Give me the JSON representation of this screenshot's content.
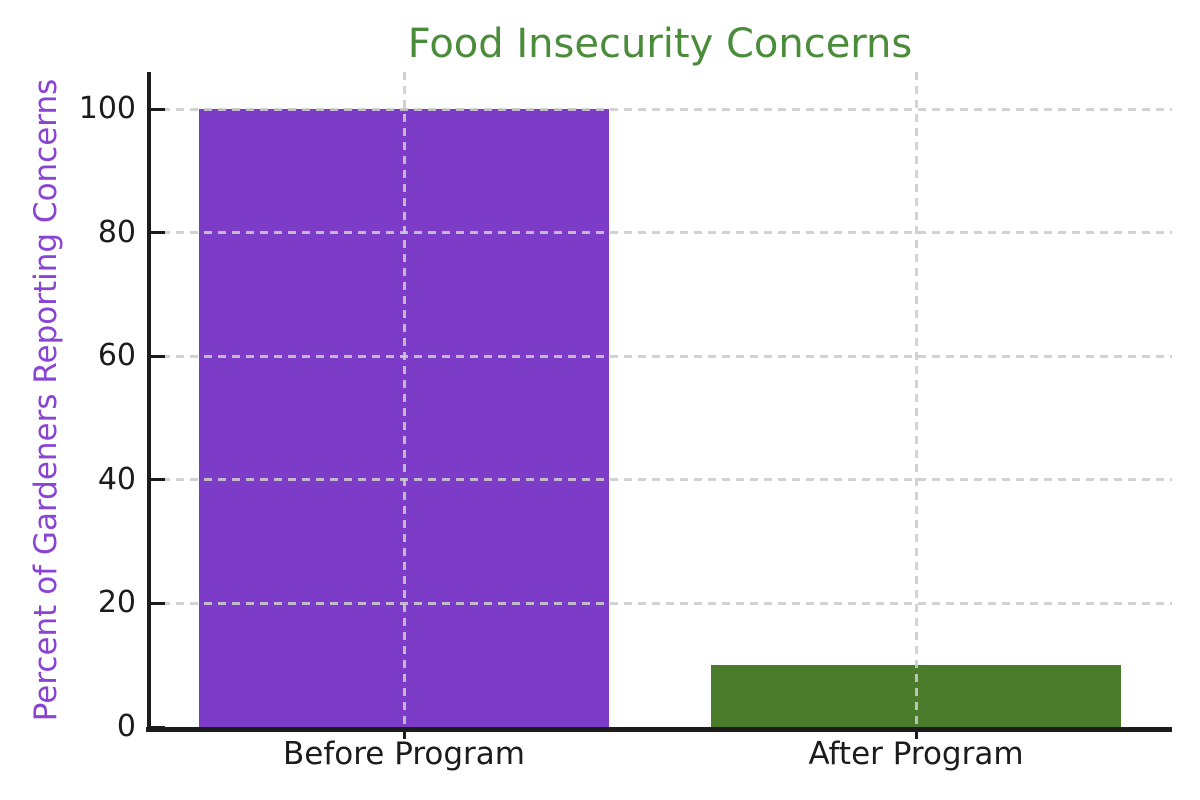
{
  "figure": {
    "background": "#ffffff"
  },
  "chart_data": {
    "type": "bar",
    "title": "Food Insecurity Concerns",
    "xlabel": "",
    "ylabel": "Percent of Gardeners Reporting Concerns",
    "categories": [
      "Before Program",
      "After Program"
    ],
    "values": [
      100,
      10
    ],
    "bar_colors": [
      "#7d3cc8",
      "#4a7c2b"
    ],
    "yticks": [
      0,
      20,
      40,
      60,
      80,
      100
    ],
    "ytick_labels": [
      "0",
      "20",
      "40",
      "60",
      "80",
      "100"
    ],
    "ylim": [
      0,
      106
    ],
    "grid": "dashed, horizontal and vertical, drawn over bars",
    "legend_position": "none",
    "title_color": "#4a8c3a",
    "ylabel_color": "#8a44d4",
    "tick_label_color": "#1c1c1c",
    "axis_color": "#1c1c1c",
    "grid_color": "#cccccc"
  }
}
